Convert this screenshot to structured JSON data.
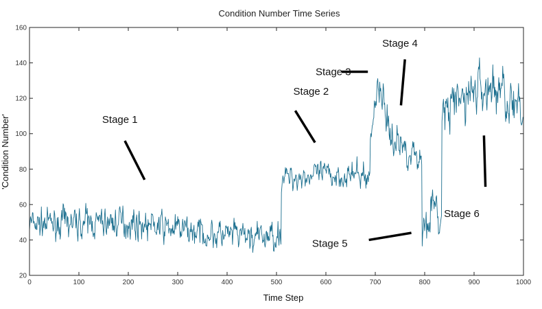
{
  "chart_data": {
    "type": "line",
    "title": "Condition Number Time Series",
    "xlabel": "Time Step",
    "ylabel": "'Condition Number'",
    "xlim": [
      0,
      1000
    ],
    "ylim": [
      20,
      160
    ],
    "xticks": [
      0,
      100,
      200,
      300,
      400,
      500,
      600,
      700,
      800,
      900,
      1000
    ],
    "yticks": [
      20,
      40,
      60,
      80,
      100,
      120,
      140,
      160
    ],
    "grid": false,
    "line_color": "#1a6e8e",
    "n_points": 1000,
    "segments": [
      {
        "from": 0,
        "to": 510,
        "mean": 47,
        "amplitude": 7,
        "drift": [
          [
            0,
            49
          ],
          [
            200,
            50
          ],
          [
            300,
            46
          ],
          [
            380,
            43
          ],
          [
            470,
            41
          ],
          [
            510,
            44
          ]
        ]
      },
      {
        "from": 510,
        "to": 690,
        "mean": 77,
        "amplitude": 6,
        "drift": [
          [
            510,
            75
          ],
          [
            600,
            77
          ],
          [
            690,
            76
          ]
        ]
      },
      {
        "from": 690,
        "to": 725,
        "mean": 115,
        "amplitude": 9,
        "drift": [
          [
            690,
            95
          ],
          [
            705,
            130
          ],
          [
            725,
            110
          ]
        ]
      },
      {
        "from": 725,
        "to": 795,
        "mean": 92,
        "amplitude": 8,
        "drift": [
          [
            725,
            100
          ],
          [
            760,
            92
          ],
          [
            795,
            85
          ]
        ]
      },
      {
        "from": 795,
        "to": 835,
        "mean": 52,
        "amplitude": 9,
        "drift": [
          [
            795,
            45
          ],
          [
            815,
            60
          ],
          [
            835,
            48
          ]
        ]
      },
      {
        "from": 835,
        "to": 1000,
        "mean": 120,
        "amplitude": 12,
        "drift": [
          [
            835,
            110
          ],
          [
            900,
            125
          ],
          [
            960,
            125
          ],
          [
            1000,
            105
          ]
        ]
      }
    ],
    "annotations": [
      {
        "text": "Stage 1",
        "label_at": [
          183,
          108
        ],
        "line_from": [
          193,
          96
        ],
        "line_to": [
          233,
          74
        ]
      },
      {
        "text": "Stage 2",
        "label_at": [
          570,
          124
        ],
        "line_from": [
          538,
          113
        ],
        "line_to": [
          578,
          95
        ]
      },
      {
        "text": "Stage 3",
        "label_at": [
          615,
          135
        ],
        "line_from": [
          632,
          135
        ],
        "line_to": [
          685,
          135
        ]
      },
      {
        "text": "Stage 4",
        "label_at": [
          750,
          151
        ],
        "line_from": [
          760,
          142
        ],
        "line_to": [
          752,
          116
        ]
      },
      {
        "text": "Stage 5",
        "label_at": [
          608,
          38
        ],
        "line_from": [
          687,
          40
        ],
        "line_to": [
          773,
          44
        ]
      },
      {
        "text": "Stage 6",
        "label_at": [
          875,
          55
        ],
        "line_from": [
          920,
          99
        ],
        "line_to": [
          923,
          70
        ]
      }
    ]
  }
}
